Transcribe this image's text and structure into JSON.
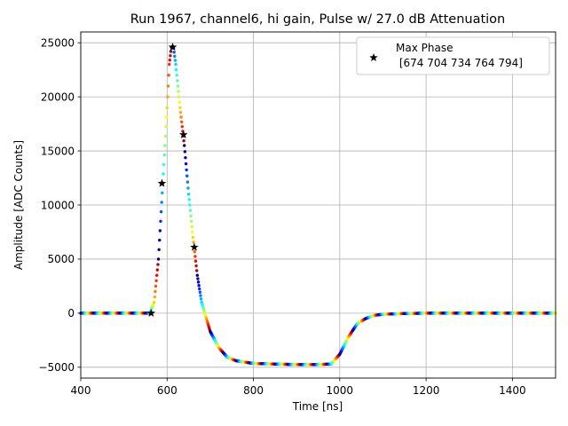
{
  "chart_data": {
    "type": "scatter",
    "title": "Run 1967, channel6, hi gain, Pulse w/ 27.0 dB Attenuation",
    "xlabel": "Time [ns]",
    "ylabel": "Amplitude [ADC Counts]",
    "xlim": [
      400,
      1500
    ],
    "ylim": [
      -6000,
      26000
    ],
    "x_ticks": [
      400,
      600,
      800,
      1000,
      1200,
      1400
    ],
    "y_ticks": [
      -5000,
      0,
      5000,
      10000,
      15000,
      20000,
      25000
    ],
    "y_tick_labels": [
      "−5000",
      "0",
      "5000",
      "10000",
      "15000",
      "20000",
      "25000"
    ],
    "grid": true,
    "colormap": "jet",
    "pulse_curve": {
      "x": [
        400,
        540,
        560,
        570,
        580,
        590,
        600,
        605,
        610,
        615,
        620,
        630,
        640,
        650,
        660,
        670,
        680,
        700,
        720,
        740,
        760,
        800,
        850,
        900,
        950,
        980,
        1000,
        1020,
        1040,
        1060,
        1080,
        1100,
        1150,
        1200,
        1500
      ],
      "y": [
        0,
        0,
        0,
        1000,
        5000,
        12000,
        19000,
        23000,
        24600,
        24500,
        23000,
        19000,
        15500,
        11000,
        7000,
        3500,
        1000,
        -1700,
        -3200,
        -4100,
        -4400,
        -4650,
        -4700,
        -4750,
        -4750,
        -4700,
        -3800,
        -2200,
        -1000,
        -500,
        -200,
        -100,
        -30,
        0,
        0
      ]
    },
    "series": [
      {
        "name": "Max Phase\n [674 704 734 764 794]",
        "marker": "star",
        "x": [
          563,
          588,
          613,
          638,
          663
        ],
        "y": [
          0,
          12000,
          24600,
          16500,
          6100
        ]
      }
    ],
    "legend": {
      "position": "top-right",
      "line1": "Max Phase",
      "line2": " [674 704 734 764 794]"
    }
  }
}
